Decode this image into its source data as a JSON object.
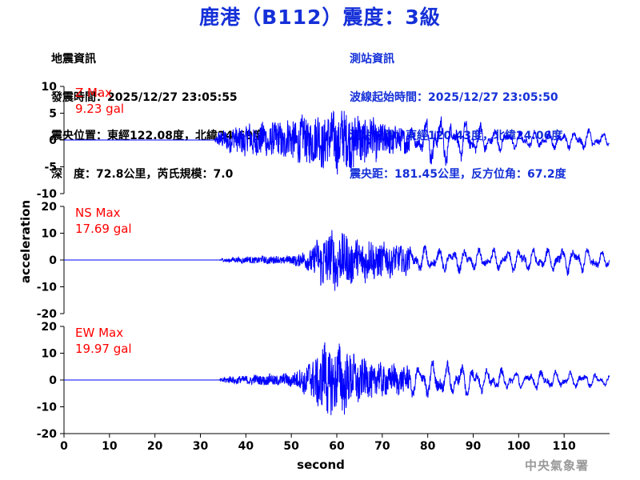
{
  "header": {
    "title": "鹿港（B112）震度：3級",
    "quake_info": [
      "地震資訊",
      "發震時間：2025/12/27 23:05:55",
      "震央位置：東經122.08度，北緯24.69度",
      "深　度：72.8公里，芮氏規模：7.0"
    ],
    "station_info": [
      "測站資訊",
      "波線起始時間：2025/12/27 23:05:50",
      "測站位置：東經120.43度，北緯24.06度",
      "震央距：181.45公里，反方位角：67.2度"
    ]
  },
  "watermark": "中央氣象署",
  "colors": {
    "trace": "#0000ff",
    "title": "#1530d8",
    "max_label": "#ff0000",
    "axis": "#000000"
  },
  "chart_data": {
    "type": "line",
    "xlabel": "second",
    "ylabel": "acceleration",
    "xlim": [
      0,
      120
    ],
    "xticks": [
      0,
      10,
      20,
      30,
      40,
      50,
      60,
      70,
      80,
      90,
      100,
      110
    ],
    "panels": [
      {
        "name": "Z",
        "max_label": "Z Max",
        "max_value": "9.23 gal",
        "ylim": [
          -10,
          10
        ],
        "yticks": [
          -10,
          -5,
          0,
          5,
          10
        ],
        "envelope": [
          [
            0,
            0
          ],
          [
            33,
            0
          ],
          [
            34,
            2.0
          ],
          [
            40,
            3.5
          ],
          [
            45,
            4.0
          ],
          [
            52,
            5.0
          ],
          [
            56,
            6.0
          ],
          [
            60,
            6.5
          ],
          [
            62,
            7.0
          ],
          [
            66,
            5.5
          ],
          [
            70,
            4.0
          ],
          [
            74,
            3.0
          ],
          [
            78,
            3.0
          ],
          [
            80,
            5.5
          ],
          [
            82,
            6.5
          ],
          [
            85,
            5.0
          ],
          [
            90,
            4.0
          ],
          [
            95,
            2.5
          ],
          [
            100,
            2.0
          ],
          [
            110,
            2.0
          ],
          [
            115,
            2.5
          ],
          [
            120,
            1.5
          ]
        ]
      },
      {
        "name": "NS",
        "max_label": "NS Max",
        "max_value": "17.69 gal",
        "ylim": [
          -20,
          20
        ],
        "yticks": [
          -20,
          -10,
          0,
          10,
          20
        ],
        "envelope": [
          [
            0,
            0
          ],
          [
            34,
            0
          ],
          [
            35,
            1.0
          ],
          [
            40,
            1.5
          ],
          [
            45,
            1.8
          ],
          [
            50,
            2.0
          ],
          [
            53,
            4.0
          ],
          [
            56,
            9.0
          ],
          [
            57,
            14.0
          ],
          [
            58,
            12.0
          ],
          [
            60,
            13.0
          ],
          [
            62,
            12.0
          ],
          [
            64,
            9.0
          ],
          [
            66,
            10.0
          ],
          [
            68,
            9.0
          ],
          [
            72,
            7.0
          ],
          [
            76,
            6.0
          ],
          [
            80,
            6.0
          ],
          [
            85,
            5.5
          ],
          [
            90,
            5.0
          ],
          [
            95,
            5.0
          ],
          [
            100,
            5.5
          ],
          [
            105,
            5.0
          ],
          [
            110,
            6.0
          ],
          [
            115,
            5.5
          ],
          [
            120,
            3.5
          ]
        ]
      },
      {
        "name": "EW",
        "max_label": "EW Max",
        "max_value": "19.97 gal",
        "ylim": [
          -20,
          20
        ],
        "yticks": [
          -20,
          -10,
          0,
          10,
          20
        ],
        "envelope": [
          [
            0,
            0
          ],
          [
            34,
            0
          ],
          [
            35,
            1.5
          ],
          [
            40,
            2.0
          ],
          [
            45,
            2.5
          ],
          [
            50,
            3.0
          ],
          [
            53,
            6.0
          ],
          [
            56,
            13.0
          ],
          [
            58,
            17.0
          ],
          [
            60,
            15.0
          ],
          [
            62,
            14.0
          ],
          [
            64,
            11.0
          ],
          [
            66,
            9.0
          ],
          [
            70,
            8.0
          ],
          [
            74,
            6.0
          ],
          [
            78,
            8.0
          ],
          [
            82,
            9.0
          ],
          [
            85,
            7.0
          ],
          [
            88,
            8.0
          ],
          [
            92,
            6.0
          ],
          [
            96,
            5.0
          ],
          [
            100,
            4.0
          ],
          [
            105,
            4.5
          ],
          [
            110,
            4.0
          ],
          [
            115,
            3.5
          ],
          [
            120,
            2.5
          ]
        ]
      }
    ]
  }
}
